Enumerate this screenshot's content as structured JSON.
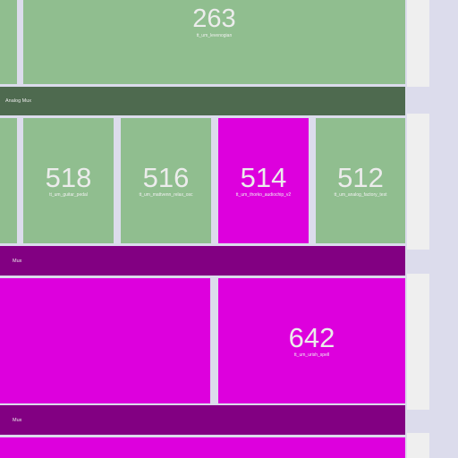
{
  "colors": {
    "tile_green": "#90be8f",
    "tile_magenta": "#dd00dd",
    "bar_green": "#4e6a4f",
    "bar_purple": "#820082",
    "page_bg": "#dcdcec"
  },
  "top_tile": {
    "number": "263",
    "label": "tt_um_levenogian"
  },
  "analog_mux": {
    "label": "Analog Mux"
  },
  "analog_tiles": [
    {
      "number": "518",
      "label": "tt_um_guitar_pedal"
    },
    {
      "number": "516",
      "label": "tt_um_mattvenn_relax_osc"
    },
    {
      "number": "514",
      "label": "tt_um_thorko_audiochip_v2"
    },
    {
      "number": "512",
      "label": "tt_um_analog_factory_test"
    }
  ],
  "mux1": {
    "label": "Mux"
  },
  "lower_tile": {
    "number": "642",
    "label": "tt_um_urish_spell"
  },
  "mux2": {
    "label": "Mux"
  }
}
